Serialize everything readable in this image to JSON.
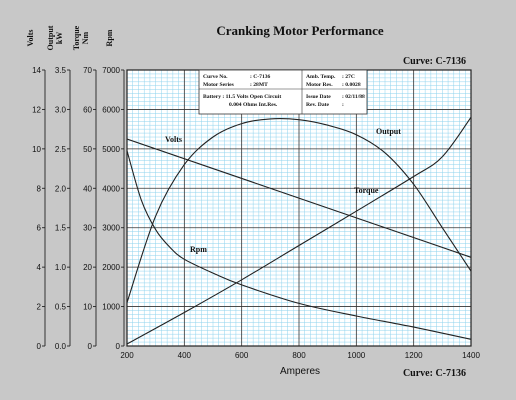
{
  "chart_data": {
    "type": "line",
    "title": "Cranking Motor Performance",
    "curve_label": "Curve: C-7136",
    "xlabel": "Amperes",
    "xlim": [
      200,
      1400
    ],
    "x_ticks": [
      200,
      400,
      600,
      800,
      1000,
      1200,
      1400
    ],
    "grid": true,
    "axes": [
      {
        "label_lines": [
          "Volts"
        ],
        "ticks": [
          0,
          2,
          4,
          6,
          8,
          10,
          12,
          14
        ]
      },
      {
        "label_lines": [
          "Output",
          "kW"
        ],
        "ticks": [
          "0.0",
          "0.5",
          "1.0",
          "1.5",
          "2.0",
          "2.5",
          "3.0",
          "3.5"
        ]
      },
      {
        "label_lines": [
          "Torque",
          "Nm"
        ],
        "ticks": [
          0,
          10,
          20,
          30,
          40,
          50,
          60,
          70
        ]
      },
      {
        "label_lines": [
          "Rpm"
        ],
        "ticks": [
          0,
          1000,
          2000,
          3000,
          4000,
          5000,
          6000,
          7000
        ]
      }
    ],
    "series": [
      {
        "name": "Volts",
        "scale": "Volts",
        "x": [
          200,
          1400
        ],
        "y": [
          10.5,
          4.5
        ]
      },
      {
        "name": "Output",
        "scale": "Output kW",
        "x": [
          200,
          300,
          400,
          500,
          600,
          700,
          800,
          900,
          1000,
          1100,
          1200,
          1300,
          1400
        ],
        "y": [
          0.55,
          1.65,
          2.3,
          2.65,
          2.82,
          2.88,
          2.87,
          2.8,
          2.68,
          2.45,
          2.05,
          1.5,
          0.95
        ]
      },
      {
        "name": "Torque",
        "scale": "Torque Nm",
        "x": [
          200,
          400,
          600,
          800,
          1000,
          1200,
          1300,
          1400
        ],
        "y": [
          0.5,
          8.5,
          16.8,
          25.5,
          34.2,
          43,
          48,
          58
        ]
      },
      {
        "name": "Rpm",
        "scale": "Rpm",
        "x": [
          200,
          250,
          300,
          350,
          400,
          500,
          600,
          800,
          1000,
          1200,
          1400
        ],
        "y": [
          4950,
          3700,
          2950,
          2500,
          2200,
          1850,
          1550,
          1080,
          760,
          480,
          170
        ]
      }
    ],
    "info_box": {
      "rows": [
        [
          "Curve No.",
          ": C-7136",
          "Amb. Temp.",
          ": 27C"
        ],
        [
          "Motor Series",
          ": 28MT",
          "Motor Res.",
          ": 0.0028"
        ],
        [
          "Battery : 11.5 Volts Open Circuit",
          "",
          "Issue Date",
          ": 02/11/88"
        ],
        [
          "0.004 Ohms Int.Res.",
          "",
          "Rev. Date",
          ":"
        ]
      ]
    }
  },
  "colors": {
    "background": "#c8c8c8",
    "plot": "#ffffff",
    "minor_grid": "#8fd3ee",
    "major_grid": "#333333",
    "curves": "#222222"
  }
}
